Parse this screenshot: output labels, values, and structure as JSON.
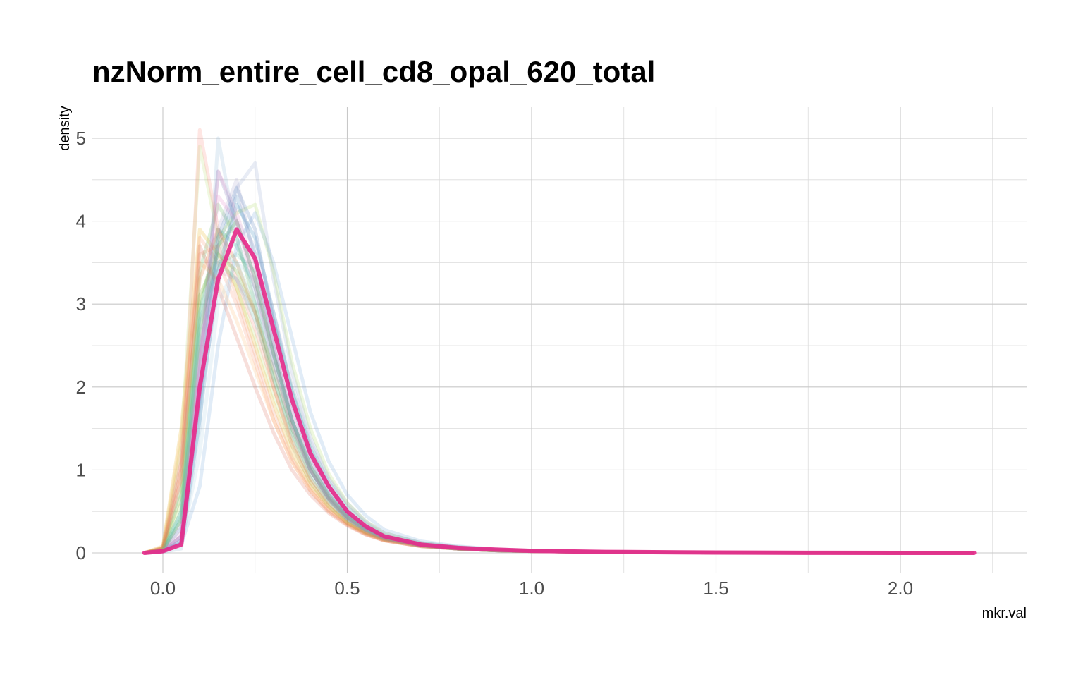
{
  "chart_data": {
    "type": "line",
    "title": "nzNorm_entire_cell_cd8_opal_620_total",
    "xlabel": "mkr.val",
    "ylabel": "density",
    "xlim": [
      -0.05,
      2.2
    ],
    "ylim": [
      0,
      5
    ],
    "x_ticks": [
      0.0,
      0.5,
      1.0,
      1.5,
      2.0
    ],
    "x_tick_labels": [
      "0.0",
      "0.5",
      "1.0",
      "1.5",
      "2.0"
    ],
    "y_ticks": [
      0,
      1,
      2,
      3,
      4,
      5
    ],
    "y_tick_labels": [
      "0",
      "1",
      "2",
      "3",
      "4",
      "5"
    ],
    "grid": true,
    "legend": "none",
    "x": [
      -0.05,
      0.0,
      0.05,
      0.1,
      0.15,
      0.2,
      0.25,
      0.3,
      0.35,
      0.4,
      0.45,
      0.5,
      0.55,
      0.6,
      0.7,
      0.8,
      0.9,
      1.0,
      1.2,
      1.4,
      1.6,
      1.8,
      2.0,
      2.2
    ],
    "series": [
      {
        "color": "#e7298a",
        "emphasis": true,
        "values": [
          0.0,
          0.02,
          0.1,
          2.0,
          3.3,
          3.9,
          3.55,
          2.7,
          1.85,
          1.2,
          0.8,
          0.5,
          0.32,
          0.2,
          0.1,
          0.06,
          0.04,
          0.025,
          0.012,
          0.006,
          0.003,
          0.001,
          0.0,
          0.0
        ]
      },
      {
        "color": "#377eb8",
        "values": [
          0.0,
          0.03,
          0.3,
          2.4,
          3.7,
          4.3,
          3.6,
          2.5,
          1.6,
          1.0,
          0.65,
          0.4,
          0.25,
          0.16,
          0.08,
          0.05,
          0.03,
          0.02,
          0.01,
          0.005,
          0.002,
          0.001,
          0.0,
          0.0
        ]
      },
      {
        "color": "#4daf4a",
        "values": [
          0.0,
          0.05,
          0.8,
          3.4,
          4.2,
          3.8,
          3.0,
          2.1,
          1.4,
          0.9,
          0.6,
          0.38,
          0.25,
          0.17,
          0.09,
          0.05,
          0.03,
          0.02,
          0.01,
          0.005,
          0.002,
          0.001,
          0.0,
          0.0
        ]
      },
      {
        "color": "#e6ab02",
        "values": [
          0.0,
          0.08,
          1.5,
          3.9,
          3.6,
          3.2,
          2.5,
          1.8,
          1.2,
          0.8,
          0.55,
          0.36,
          0.24,
          0.16,
          0.09,
          0.05,
          0.03,
          0.02,
          0.01,
          0.005,
          0.002,
          0.001,
          0.0,
          0.0
        ]
      },
      {
        "color": "#7570b3",
        "values": [
          0.0,
          0.02,
          0.2,
          2.2,
          4.6,
          4.0,
          3.3,
          2.4,
          1.6,
          1.0,
          0.65,
          0.42,
          0.27,
          0.17,
          0.09,
          0.05,
          0.03,
          0.02,
          0.01,
          0.005,
          0.002,
          0.001,
          0.0,
          0.0
        ]
      },
      {
        "color": "#66c2a5",
        "values": [
          0.0,
          0.03,
          0.4,
          2.6,
          3.5,
          3.6,
          3.4,
          2.8,
          2.0,
          1.3,
          0.85,
          0.55,
          0.35,
          0.22,
          0.11,
          0.06,
          0.04,
          0.025,
          0.012,
          0.006,
          0.003,
          0.001,
          0.0,
          0.0
        ]
      },
      {
        "color": "#fc8d62",
        "values": [
          0.0,
          0.06,
          1.2,
          3.8,
          3.5,
          3.0,
          2.3,
          1.6,
          1.1,
          0.75,
          0.5,
          0.34,
          0.22,
          0.15,
          0.08,
          0.05,
          0.03,
          0.02,
          0.01,
          0.005,
          0.002,
          0.001,
          0.0,
          0.0
        ]
      },
      {
        "color": "#8da0cb",
        "values": [
          0.0,
          0.02,
          0.15,
          1.8,
          3.2,
          4.4,
          4.7,
          3.3,
          2.2,
          1.4,
          0.9,
          0.6,
          0.38,
          0.24,
          0.12,
          0.07,
          0.04,
          0.025,
          0.012,
          0.006,
          0.003,
          0.001,
          0.0,
          0.0
        ]
      },
      {
        "color": "#a6d854",
        "values": [
          0.0,
          0.04,
          0.6,
          3.0,
          3.8,
          4.1,
          4.2,
          3.4,
          2.3,
          1.5,
          0.95,
          0.6,
          0.38,
          0.24,
          0.12,
          0.07,
          0.04,
          0.025,
          0.012,
          0.006,
          0.003,
          0.001,
          0.0,
          0.0
        ]
      },
      {
        "color": "#1b9e77",
        "values": [
          0.0,
          0.03,
          0.5,
          2.9,
          3.9,
          3.7,
          3.2,
          2.4,
          1.6,
          1.05,
          0.7,
          0.45,
          0.3,
          0.2,
          0.1,
          0.06,
          0.035,
          0.022,
          0.011,
          0.005,
          0.002,
          0.001,
          0.0,
          0.0
        ]
      },
      {
        "color": "#d95f02",
        "values": [
          0.0,
          0.05,
          1.0,
          3.3,
          3.9,
          3.5,
          2.9,
          2.0,
          1.3,
          0.85,
          0.56,
          0.36,
          0.24,
          0.16,
          0.09,
          0.05,
          0.03,
          0.02,
          0.01,
          0.005,
          0.002,
          0.001,
          0.0,
          0.0
        ]
      },
      {
        "color": "#e78ac3",
        "values": [
          0.0,
          0.02,
          0.25,
          2.3,
          4.6,
          4.1,
          3.4,
          2.5,
          1.7,
          1.1,
          0.72,
          0.46,
          0.3,
          0.19,
          0.1,
          0.06,
          0.035,
          0.022,
          0.011,
          0.005,
          0.002,
          0.001,
          0.0,
          0.0
        ]
      },
      {
        "color": "#80b1d3",
        "values": [
          0.0,
          0.01,
          0.05,
          1.5,
          5.0,
          3.8,
          3.1,
          2.3,
          1.55,
          1.0,
          0.66,
          0.43,
          0.28,
          0.18,
          0.09,
          0.05,
          0.03,
          0.02,
          0.01,
          0.005,
          0.002,
          0.001,
          0.0,
          0.0
        ]
      },
      {
        "color": "#b3de69",
        "values": [
          0.0,
          0.06,
          1.3,
          4.9,
          3.8,
          3.2,
          2.6,
          1.9,
          1.3,
          0.85,
          0.56,
          0.36,
          0.24,
          0.16,
          0.09,
          0.05,
          0.03,
          0.02,
          0.01,
          0.005,
          0.002,
          0.001,
          0.0,
          0.0
        ]
      },
      {
        "color": "#fb8072",
        "values": [
          0.0,
          0.05,
          0.9,
          5.1,
          3.9,
          3.3,
          2.7,
          2.0,
          1.35,
          0.9,
          0.6,
          0.4,
          0.26,
          0.17,
          0.09,
          0.05,
          0.03,
          0.02,
          0.01,
          0.005,
          0.002,
          0.001,
          0.0,
          0.0
        ]
      },
      {
        "color": "#bebada",
        "values": [
          0.0,
          0.02,
          0.2,
          2.1,
          3.6,
          4.0,
          3.7,
          2.9,
          2.05,
          1.35,
          0.88,
          0.57,
          0.37,
          0.23,
          0.12,
          0.07,
          0.04,
          0.025,
          0.012,
          0.006,
          0.003,
          0.001,
          0.0,
          0.0
        ]
      },
      {
        "color": "#6a9fd8",
        "values": [
          0.0,
          0.02,
          0.1,
          0.8,
          2.5,
          3.7,
          4.1,
          3.5,
          2.6,
          1.7,
          1.1,
          0.7,
          0.45,
          0.28,
          0.14,
          0.08,
          0.045,
          0.028,
          0.013,
          0.006,
          0.003,
          0.001,
          0.0,
          0.0
        ]
      },
      {
        "color": "#c994c7",
        "values": [
          0.0,
          0.03,
          0.35,
          2.5,
          3.4,
          3.3,
          2.9,
          2.2,
          1.5,
          1.0,
          0.66,
          0.43,
          0.28,
          0.18,
          0.09,
          0.05,
          0.03,
          0.02,
          0.01,
          0.005,
          0.002,
          0.001,
          0.0,
          0.0
        ]
      },
      {
        "color": "#a6cee3",
        "values": [
          0.0,
          0.02,
          0.1,
          1.2,
          3.0,
          3.5,
          3.3,
          2.7,
          1.95,
          1.3,
          0.85,
          0.55,
          0.36,
          0.23,
          0.12,
          0.07,
          0.04,
          0.025,
          0.012,
          0.006,
          0.003,
          0.001,
          0.0,
          0.0
        ]
      },
      {
        "color": "#fdb462",
        "values": [
          0.0,
          0.07,
          1.4,
          3.5,
          3.3,
          2.8,
          2.2,
          1.6,
          1.1,
          0.75,
          0.5,
          0.34,
          0.23,
          0.15,
          0.08,
          0.05,
          0.03,
          0.02,
          0.01,
          0.005,
          0.002,
          0.001,
          0.0,
          0.0
        ]
      },
      {
        "color": "#33a02c",
        "values": [
          0.0,
          0.03,
          0.4,
          2.7,
          3.7,
          4.0,
          3.3,
          2.4,
          1.6,
          1.05,
          0.68,
          0.44,
          0.29,
          0.18,
          0.09,
          0.05,
          0.03,
          0.02,
          0.01,
          0.005,
          0.002,
          0.001,
          0.0,
          0.0
        ]
      },
      {
        "color": "#1f78b4",
        "values": [
          0.0,
          0.02,
          0.12,
          1.6,
          3.4,
          4.2,
          3.8,
          2.9,
          1.95,
          1.25,
          0.8,
          0.5,
          0.32,
          0.2,
          0.1,
          0.06,
          0.035,
          0.022,
          0.011,
          0.005,
          0.002,
          0.001,
          0.0,
          0.0
        ]
      },
      {
        "color": "#66a61e",
        "values": [
          0.0,
          0.04,
          0.7,
          3.1,
          3.6,
          3.4,
          2.9,
          2.2,
          1.5,
          1.0,
          0.66,
          0.43,
          0.28,
          0.18,
          0.09,
          0.05,
          0.03,
          0.02,
          0.01,
          0.005,
          0.002,
          0.001,
          0.0,
          0.0
        ]
      },
      {
        "color": "#9e9ac8",
        "values": [
          0.0,
          0.02,
          0.2,
          2.0,
          3.9,
          4.5,
          3.5,
          2.5,
          1.65,
          1.05,
          0.68,
          0.44,
          0.28,
          0.18,
          0.09,
          0.05,
          0.03,
          0.02,
          0.01,
          0.005,
          0.002,
          0.001,
          0.0,
          0.0
        ]
      },
      {
        "color": "#ef8a62",
        "values": [
          0.0,
          0.05,
          0.9,
          3.6,
          3.7,
          3.1,
          2.4,
          1.7,
          1.15,
          0.77,
          0.52,
          0.35,
          0.23,
          0.15,
          0.08,
          0.05,
          0.03,
          0.02,
          0.01,
          0.005,
          0.002,
          0.001,
          0.0,
          0.0
        ]
      },
      {
        "color": "#5ab4ac",
        "values": [
          0.0,
          0.03,
          0.45,
          2.8,
          3.5,
          3.3,
          2.8,
          2.1,
          1.45,
          0.95,
          0.63,
          0.41,
          0.27,
          0.17,
          0.09,
          0.05,
          0.03,
          0.02,
          0.01,
          0.005,
          0.002,
          0.001,
          0.0,
          0.0
        ]
      },
      {
        "color": "#d6604d",
        "values": [
          0.0,
          0.06,
          1.1,
          3.7,
          3.2,
          2.6,
          2.0,
          1.45,
          1.0,
          0.7,
          0.48,
          0.33,
          0.22,
          0.15,
          0.08,
          0.05,
          0.03,
          0.02,
          0.01,
          0.005,
          0.002,
          0.001,
          0.0,
          0.0
        ]
      },
      {
        "color": "#4575b4",
        "values": [
          0.0,
          0.02,
          0.15,
          1.9,
          3.8,
          4.4,
          3.9,
          2.8,
          1.8,
          1.15,
          0.74,
          0.47,
          0.3,
          0.19,
          0.1,
          0.06,
          0.035,
          0.022,
          0.011,
          0.005,
          0.002,
          0.001,
          0.0,
          0.0
        ]
      },
      {
        "color": "#e377c2",
        "values": [
          0.0,
          0.02,
          0.2,
          2.2,
          4.3,
          4.0,
          3.2,
          2.3,
          1.55,
          1.0,
          0.66,
          0.43,
          0.28,
          0.18,
          0.09,
          0.05,
          0.03,
          0.02,
          0.01,
          0.005,
          0.002,
          0.001,
          0.0,
          0.0
        ]
      },
      {
        "color": "#8dd3c7",
        "values": [
          0.0,
          0.03,
          0.5,
          2.9,
          3.6,
          3.5,
          3.0,
          2.3,
          1.6,
          1.05,
          0.7,
          0.45,
          0.29,
          0.19,
          0.1,
          0.06,
          0.035,
          0.022,
          0.011,
          0.005,
          0.002,
          0.001,
          0.0,
          0.0
        ]
      }
    ]
  }
}
